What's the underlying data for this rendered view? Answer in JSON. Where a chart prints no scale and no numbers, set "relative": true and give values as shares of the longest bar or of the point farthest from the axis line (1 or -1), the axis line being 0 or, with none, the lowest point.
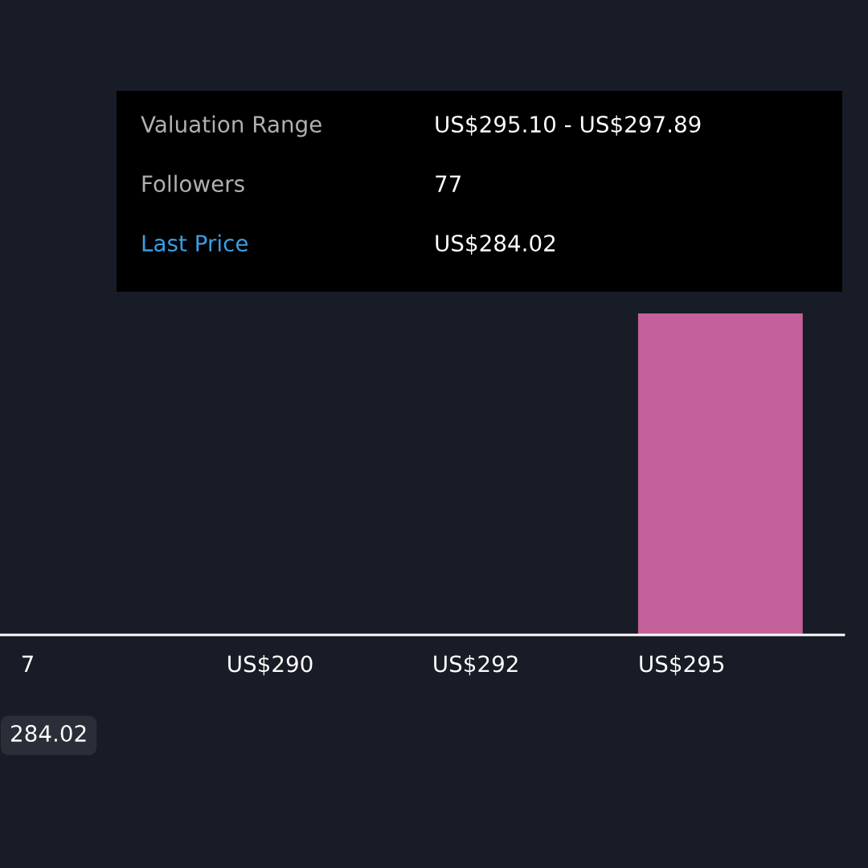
{
  "chart_data": {
    "type": "bar",
    "relative": true,
    "categories": [
      "7",
      "US$290",
      "US$292",
      "US$295"
    ],
    "values": [
      0,
      0,
      0,
      1
    ],
    "color": "#c4619a",
    "annotations": [
      "Valuation Range",
      "US$295.10 - US$297.89",
      "Followers",
      "77",
      "Last Price",
      "US$284.02",
      "284.02"
    ],
    "grid": false,
    "legend": false
  }
}
